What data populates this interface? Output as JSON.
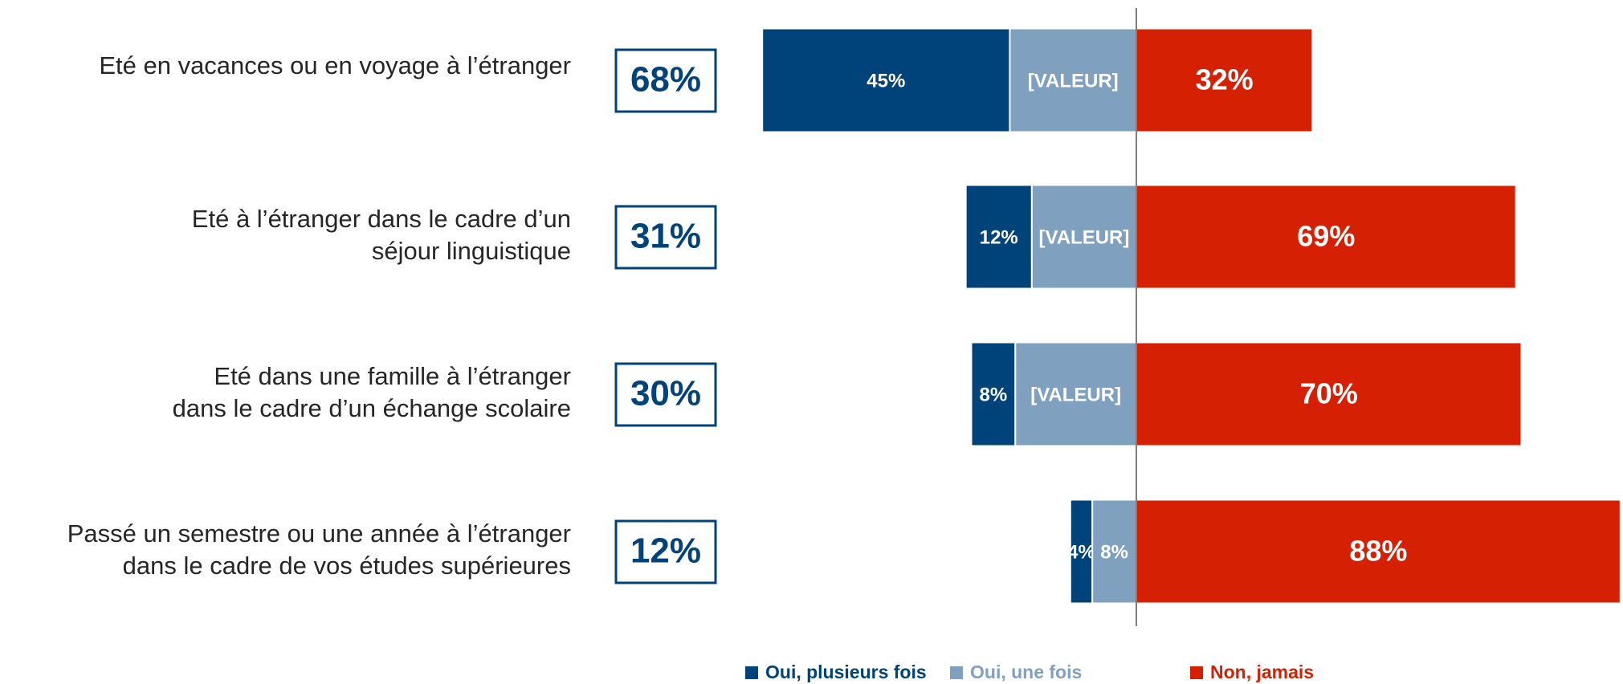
{
  "chart_data": {
    "type": "diverging-bar",
    "categories": [
      "Eté en vacances ou en voyage à l’étranger",
      "Eté à l’étranger dans le cadre d’un séjour linguistique",
      "Eté dans une famille à l’étranger dans le cadre d’un échange scolaire",
      "Passé un semestre ou une année à l’étranger dans le cadre de vos études supérieures"
    ],
    "totals": [
      "68%",
      "31%",
      "30%",
      "12%"
    ],
    "series": [
      {
        "name": "Oui, plusieurs fois",
        "color": "#00427a",
        "values": [
          45,
          12,
          8,
          4
        ],
        "value_labels": [
          "45%",
          "12%",
          "8%",
          "4%"
        ]
      },
      {
        "name": "Oui, une fois",
        "color": "#7fa0bf",
        "values": [
          23,
          19,
          22,
          8
        ],
        "value_labels": [
          "[VALEUR]",
          "[VALEUR]",
          "[VALEUR]",
          "8%"
        ]
      },
      {
        "name": "Non, jamais",
        "color": "#d62003",
        "values": [
          32,
          69,
          70,
          88
        ],
        "value_labels": [
          "32%",
          "69%",
          "70%",
          "88%"
        ]
      }
    ]
  }
}
